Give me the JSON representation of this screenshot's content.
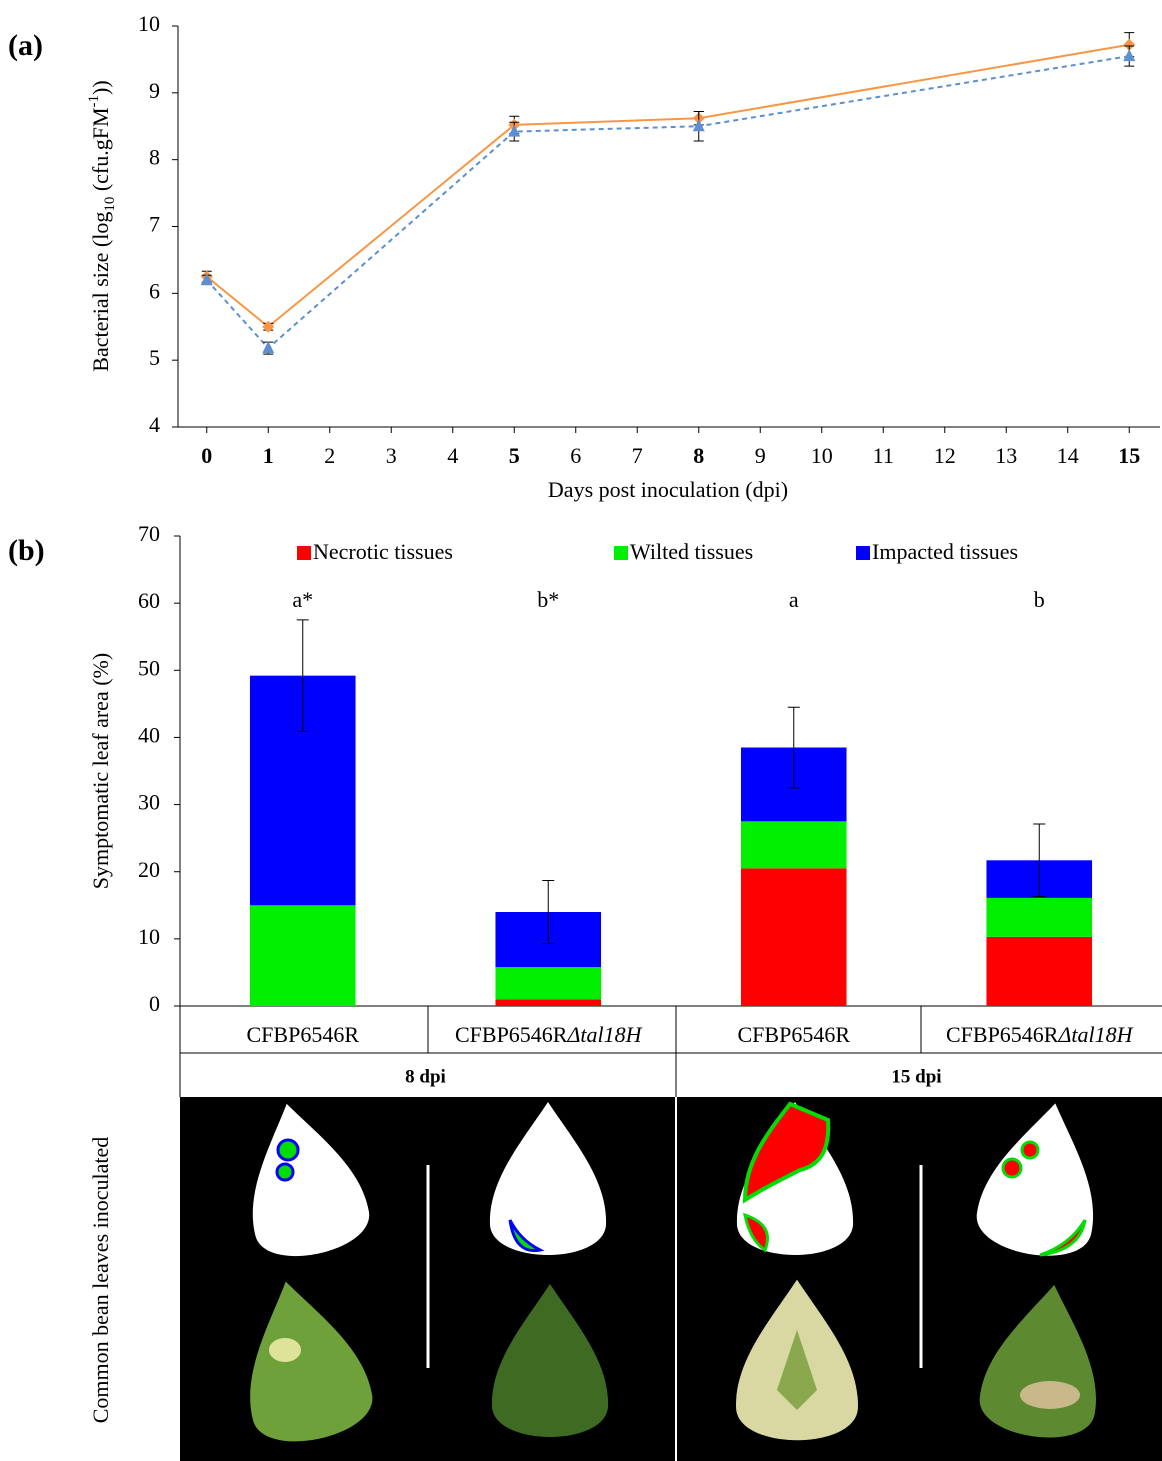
{
  "panel_labels": [
    "(a)",
    "(b)"
  ],
  "chart_data": [
    {
      "type": "line",
      "ylabel": [
        "Bacterial size (log",
        "10",
        " (cfu.gFM",
        "-1",
        "))"
      ],
      "xlabel": "Days post inoculation (dpi)",
      "x": [
        0,
        1,
        5,
        8,
        15
      ],
      "xlim": [
        -0.5,
        15.5
      ],
      "xticks": [
        0,
        1,
        2,
        3,
        4,
        5,
        6,
        7,
        8,
        9,
        10,
        11,
        12,
        13,
        14,
        15
      ],
      "bold_xticks": [
        0,
        1,
        5,
        8,
        15
      ],
      "ylim": [
        4,
        10
      ],
      "yticks": [
        4,
        5,
        6,
        7,
        8,
        9,
        10
      ],
      "series": [
        {
          "color": "#f79646",
          "line_style": "solid",
          "marker": "diamond",
          "values": [
            6.25,
            5.5,
            8.52,
            8.62,
            9.72
          ],
          "errors": [
            0.08,
            0.05,
            0.13,
            0.1,
            0.18
          ]
        },
        {
          "color": "#5b8fd0",
          "line_style": "dashed",
          "marker": "triangle",
          "values": [
            6.2,
            5.18,
            8.42,
            8.5,
            9.55
          ],
          "errors": [
            0.07,
            0.09,
            0.14,
            0.22,
            0.15
          ]
        }
      ]
    },
    {
      "type": "stacked_bar",
      "ylabel": "Symptomatic leaf area (%)",
      "categories": [
        "CFBP6546R",
        "CFBP6546RΔtal18H",
        "CFBP6546R",
        "CFBP6546RΔtal18H"
      ],
      "groups": [
        "8 dpi",
        "15 dpi"
      ],
      "annotations": [
        "a*",
        "b*",
        "a",
        "b"
      ],
      "ylim": [
        0,
        70
      ],
      "yticks": [
        0,
        10,
        20,
        30,
        40,
        50,
        60,
        70
      ],
      "legend": "top",
      "series": [
        {
          "name": "Necrotic tissues",
          "color": "#ff0000",
          "values": [
            0,
            1,
            20.5,
            10.3
          ]
        },
        {
          "name": "Wilted tissues",
          "color": "#00ee00",
          "values": [
            15,
            4.8,
            7,
            5.8
          ]
        },
        {
          "name": "Impacted tissues",
          "color": "#0000ff",
          "values": [
            34.2,
            8.2,
            11,
            5.6
          ]
        }
      ],
      "errors": [
        8.3,
        4.7,
        6,
        5.4
      ]
    }
  ],
  "photo_panel": {
    "label": "Common bean leaves inoculated"
  }
}
